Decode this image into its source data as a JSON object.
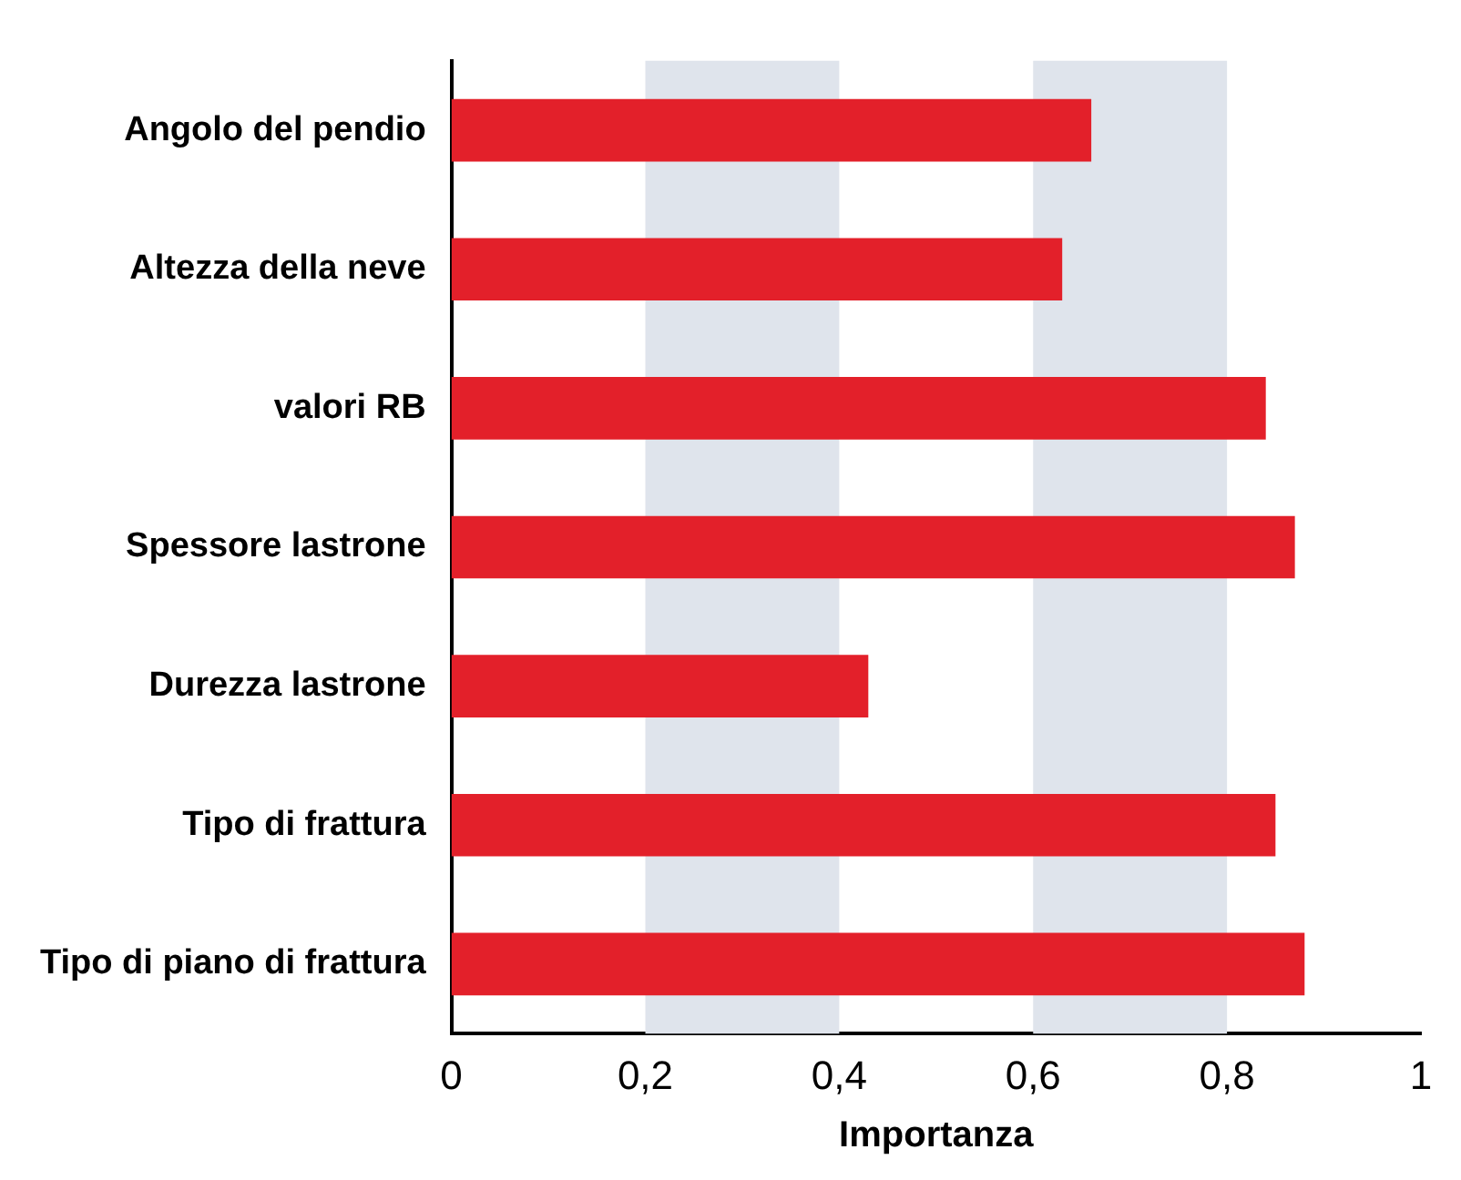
{
  "chart_data": {
    "type": "bar",
    "orientation": "horizontal",
    "categories": [
      "Angolo del pendio",
      "Altezza della neve",
      "valori RB",
      "Spessore lastrone",
      "Durezza lastrone",
      "Tipo di frattura",
      "Tipo di piano di frattura"
    ],
    "values": [
      0.66,
      0.63,
      0.84,
      0.87,
      0.43,
      0.85,
      0.88
    ],
    "color": "#e3202a",
    "xlabel": "Importanza",
    "xlim": [
      0,
      1
    ],
    "xticks": [
      0,
      {
        "value": 0.2,
        "label": "0,2"
      },
      {
        "value": 0.4,
        "label": "0,4"
      },
      {
        "value": 0.6,
        "label": "0,6"
      },
      {
        "value": 0.8,
        "label": "0,8"
      },
      1
    ],
    "bands": [
      {
        "axis": "x",
        "from": 0.2,
        "to": 0.4,
        "color": "#dfe4ec"
      },
      {
        "axis": "x",
        "from": 0.6,
        "to": 0.8,
        "color": "#dfe4ec"
      }
    ],
    "grid": false,
    "legend": false
  }
}
